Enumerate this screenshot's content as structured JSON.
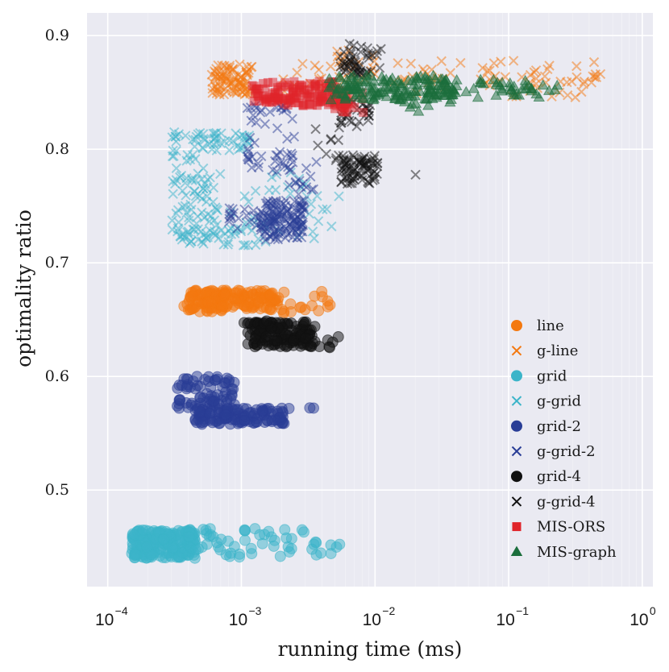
{
  "chart_data": {
    "type": "scatter",
    "title": "",
    "xlabel": "running time (ms)",
    "ylabel": "optimality ratio",
    "xscale": "log",
    "xlim": [
      7e-05,
      1.2
    ],
    "ylim": [
      0.415,
      0.92
    ],
    "grid": true,
    "legend_position": "lower-right",
    "x_ticks": [
      {
        "base": "10",
        "exp": "−4",
        "value": 0.0001
      },
      {
        "base": "10",
        "exp": "−3",
        "value": 0.001
      },
      {
        "base": "10",
        "exp": "−2",
        "value": 0.01
      },
      {
        "base": "10",
        "exp": "−1",
        "value": 0.1
      },
      {
        "base": "10",
        "exp": "0",
        "value": 1
      }
    ],
    "y_ticks": [
      "0.5",
      "0.6",
      "0.7",
      "0.8",
      "0.9"
    ],
    "y_tick_values": [
      0.5,
      0.6,
      0.7,
      0.8,
      0.9
    ],
    "series": [
      {
        "name": "line",
        "marker": "circle",
        "color": "#f4780f",
        "clusters": [
          {
            "x": [
              0.0004,
              0.0019
            ],
            "y": [
              0.657,
              0.676
            ],
            "n": 150,
            "lx": true
          },
          {
            "x": [
              0.001,
              0.0055
            ],
            "y": [
              0.655,
              0.675
            ],
            "n": 25,
            "lx": true
          },
          {
            "x": [
              0.00035,
              0.0005
            ],
            "y": [
              0.66,
              0.672
            ],
            "n": 8,
            "lx": true
          }
        ]
      },
      {
        "name": "g-line",
        "marker": "x",
        "color": "#f4780f",
        "clusters": [
          {
            "x": [
              0.0006,
              0.0012
            ],
            "y": [
              0.848,
              0.875
            ],
            "n": 90,
            "lx": true
          },
          {
            "x": [
              0.002,
              0.5
            ],
            "y": [
              0.845,
              0.878
            ],
            "n": 90,
            "lx": true
          },
          {
            "x": [
              0.004,
              0.01
            ],
            "y": [
              0.86,
              0.89
            ],
            "n": 15,
            "lx": true
          }
        ]
      },
      {
        "name": "grid",
        "marker": "circle",
        "color": "#3bb4c9",
        "clusters": [
          {
            "x": [
              0.00015,
              0.00045
            ],
            "y": [
              0.44,
              0.465
            ],
            "n": 220,
            "lx": true
          },
          {
            "x": [
              0.00045,
              0.003
            ],
            "y": [
              0.441,
              0.466
            ],
            "n": 45,
            "lx": true
          },
          {
            "x": [
              0.003,
              0.0055
            ],
            "y": [
              0.442,
              0.464
            ],
            "n": 10,
            "lx": true
          }
        ]
      },
      {
        "name": "g-grid",
        "marker": "x",
        "color": "#3bb4c9",
        "clusters": [
          {
            "x": [
              0.0003,
              0.0012
            ],
            "y": [
              0.798,
              0.815
            ],
            "n": 50,
            "lx": true
          },
          {
            "x": [
              0.0003,
              0.0006
            ],
            "y": [
              0.72,
              0.795
            ],
            "n": 70,
            "lx": true
          },
          {
            "x": [
              0.0006,
              0.0055
            ],
            "y": [
              0.715,
              0.78
            ],
            "n": 45,
            "lx": true
          },
          {
            "x": [
              0.0003,
              0.0015
            ],
            "y": [
              0.715,
              0.73
            ],
            "n": 30,
            "lx": true
          }
        ]
      },
      {
        "name": "grid-2",
        "marker": "circle",
        "color": "#293d96",
        "clusters": [
          {
            "x": [
              0.00033,
              0.0009
            ],
            "y": [
              0.572,
              0.6
            ],
            "n": 70,
            "lx": true
          },
          {
            "x": [
              0.00045,
              0.0021
            ],
            "y": [
              0.558,
              0.572
            ],
            "n": 130,
            "lx": true
          },
          {
            "x": [
              0.0012,
              0.0035
            ],
            "y": [
              0.563,
              0.582
            ],
            "n": 6,
            "lx": true
          }
        ]
      },
      {
        "name": "g-grid-2",
        "marker": "x",
        "color": "#293d96",
        "clusters": [
          {
            "x": [
              0.0014,
              0.003
            ],
            "y": [
              0.72,
              0.755
            ],
            "n": 130,
            "lx": true
          },
          {
            "x": [
              0.0008,
              0.0015
            ],
            "y": [
              0.73,
              0.75
            ],
            "n": 25,
            "lx": true
          },
          {
            "x": [
              0.0011,
              0.0025
            ],
            "y": [
              0.78,
              0.84
            ],
            "n": 50,
            "lx": true
          },
          {
            "x": [
              0.002,
              0.004
            ],
            "y": [
              0.76,
              0.79
            ],
            "n": 15,
            "lx": true
          }
        ]
      },
      {
        "name": "grid-4",
        "marker": "circle",
        "color": "#111111",
        "clusters": [
          {
            "x": [
              0.0011,
              0.0036
            ],
            "y": [
              0.626,
              0.648
            ],
            "n": 140,
            "lx": true
          },
          {
            "x": [
              0.001,
              0.0055
            ],
            "y": [
              0.625,
              0.65
            ],
            "n": 15,
            "lx": true
          }
        ]
      },
      {
        "name": "g-grid-4",
        "marker": "x",
        "color": "#111111",
        "clusters": [
          {
            "x": [
              0.0055,
              0.0105
            ],
            "y": [
              0.768,
              0.795
            ],
            "n": 80,
            "lx": true
          },
          {
            "x": [
              0.0055,
              0.0115
            ],
            "y": [
              0.865,
              0.893
            ],
            "n": 50,
            "lx": true
          },
          {
            "x": [
              0.0055,
              0.0095
            ],
            "y": [
              0.82,
              0.845
            ],
            "n": 25,
            "lx": true
          },
          {
            "x": [
              0.0035,
              0.0055
            ],
            "y": [
              0.79,
              0.82
            ],
            "n": 10,
            "lx": true
          },
          {
            "x": [
              0.02,
              0.021
            ],
            "y": [
              0.777,
              0.779
            ],
            "n": 1,
            "lx": true
          }
        ]
      },
      {
        "name": "MIS-ORS",
        "marker": "square",
        "color": "#e0242a",
        "clusters": [
          {
            "x": [
              0.0012,
              0.0065
            ],
            "y": [
              0.838,
              0.86
            ],
            "n": 140,
            "lx": true
          },
          {
            "x": [
              0.0045,
              0.0085
            ],
            "y": [
              0.832,
              0.85
            ],
            "n": 20,
            "lx": true
          }
        ]
      },
      {
        "name": "MIS-graph",
        "marker": "triangle",
        "color": "#1b6e3c",
        "clusters": [
          {
            "x": [
              0.0045,
              0.04
            ],
            "y": [
              0.843,
              0.865
            ],
            "n": 160,
            "lx": true
          },
          {
            "x": [
              0.04,
              0.25
            ],
            "y": [
              0.845,
              0.862
            ],
            "n": 40,
            "lx": true
          },
          {
            "x": [
              0.01,
              0.04
            ],
            "y": [
              0.832,
              0.85
            ],
            "n": 12,
            "lx": true
          }
        ]
      }
    ]
  }
}
